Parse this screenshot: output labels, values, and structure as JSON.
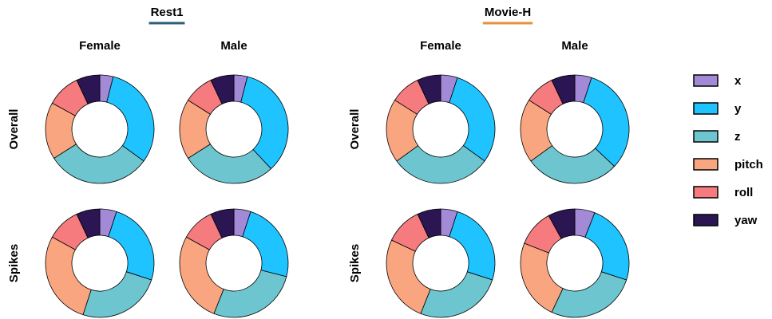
{
  "panels": [
    {
      "title": "Rest1",
      "color": "#2e5d78"
    },
    {
      "title": "Movie-H",
      "color": "#e8913c"
    }
  ],
  "columns": [
    "Female",
    "Male"
  ],
  "rows": [
    "Overall",
    "Spikes"
  ],
  "legend": {
    "categories": [
      "x",
      "y",
      "z",
      "pitch",
      "roll",
      "yaw"
    ],
    "colors": [
      "#a38ad6",
      "#1ec3ff",
      "#6dc6cf",
      "#f9a57f",
      "#f57b7e",
      "#2b1552"
    ]
  },
  "chart_data": [
    {
      "type": "pie",
      "values": [
        4,
        31,
        31,
        17,
        10,
        7
      ]
    },
    {
      "type": "pie",
      "values": [
        4,
        34,
        28,
        18,
        9,
        7
      ]
    },
    {
      "type": "pie",
      "values": [
        5,
        25,
        25,
        28,
        10,
        7
      ]
    },
    {
      "type": "pie",
      "values": [
        5,
        24,
        27,
        27,
        10,
        7
      ]
    },
    {
      "type": "pie",
      "values": [
        5,
        30,
        30,
        19,
        9,
        7
      ]
    },
    {
      "type": "pie",
      "values": [
        5,
        32,
        28,
        19,
        9,
        7
      ]
    },
    {
      "type": "pie",
      "values": [
        5,
        25,
        26,
        26,
        11,
        7
      ]
    },
    {
      "type": "pie",
      "values": [
        6,
        24,
        27,
        24,
        11,
        8
      ]
    }
  ]
}
